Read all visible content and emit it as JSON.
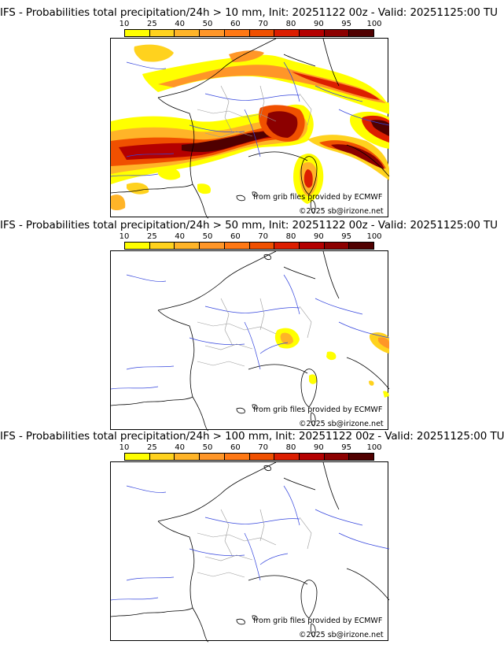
{
  "colorbar": {
    "ticks": [
      "10",
      "25",
      "40",
      "50",
      "60",
      "70",
      "80",
      "90",
      "95",
      "100"
    ],
    "colors": [
      "#ffff00",
      "#ffd21e",
      "#ffb428",
      "#ff9628",
      "#ff7814",
      "#f05000",
      "#dc1e00",
      "#b40000",
      "#8c0000",
      "#500000"
    ]
  },
  "panels": [
    {
      "title": "IFS - Probabilities total precipitation/24h > 10 mm, Init: 20251122 00z - Valid: 20251125:00 TU",
      "source": "from grib files provided by ECMWF",
      "copyright": "©2025 sb@irizone.net"
    },
    {
      "title": "IFS - Probabilities total precipitation/24h > 50 mm, Init: 20251122 00z - Valid: 20251125:00 TU",
      "source": "from grib files provided by ECMWF",
      "copyright": "©2025 sb@irizone.net"
    },
    {
      "title": "IFS - Probabilities total precipitation/24h > 100 mm, Init: 20251122 00z - Valid: 20251125:00 TU",
      "source": "from grib files provided by ECMWF",
      "copyright": "©2025 sb@irizone.net"
    }
  ]
}
